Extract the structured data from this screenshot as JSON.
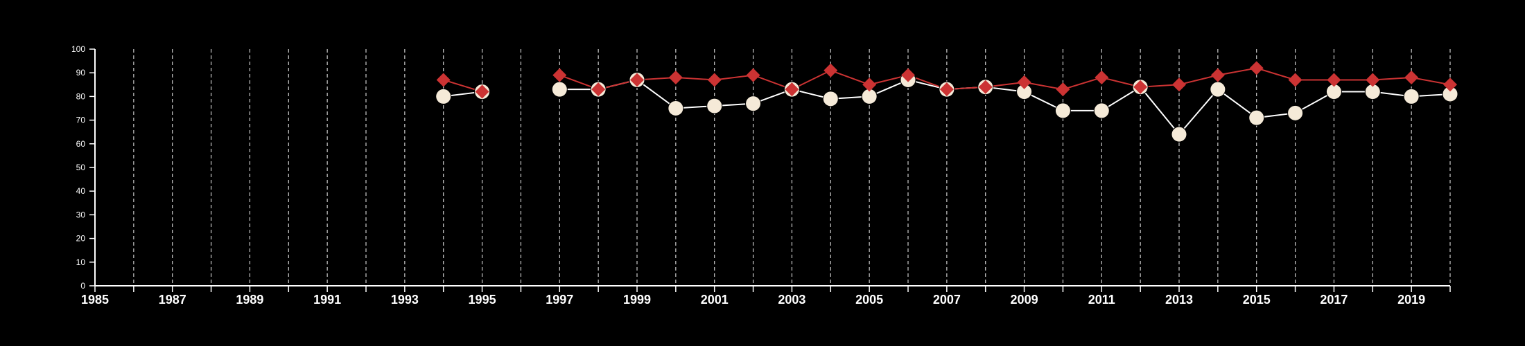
{
  "colors": {
    "background": "#000000",
    "axis": "#ffffff",
    "grid": "#cccccc",
    "series_a_line": "#ffffff",
    "series_a_marker": "#f5ead8",
    "series_b": "#cc3333"
  },
  "chart_data": {
    "type": "line",
    "title": "",
    "xlabel": "",
    "ylabel": "",
    "xlim": [
      1985,
      2020
    ],
    "ylim": [
      0,
      100
    ],
    "x_ticks": [
      "1985",
      "1987",
      "1989",
      "1991",
      "1993",
      "1995",
      "1997",
      "1999",
      "2001",
      "2003",
      "2005",
      "2007",
      "2009",
      "2011",
      "2013",
      "2015",
      "2017",
      "2019"
    ],
    "y_ticks": [
      "0",
      "10",
      "20",
      "30",
      "40",
      "50",
      "60",
      "70",
      "80",
      "90",
      "100"
    ],
    "grid": "vertical dashed lines at every year",
    "legend": "none",
    "series": [
      {
        "marker": "circle",
        "points": [
          [
            1994,
            80
          ],
          [
            1995,
            82
          ],
          [
            1997,
            83
          ],
          [
            1998,
            83
          ],
          [
            1999,
            87
          ],
          [
            2000,
            75
          ],
          [
            2001,
            76
          ],
          [
            2002,
            77
          ],
          [
            2003,
            83
          ],
          [
            2004,
            79
          ],
          [
            2005,
            80
          ],
          [
            2006,
            87
          ],
          [
            2007,
            83
          ],
          [
            2008,
            84
          ],
          [
            2009,
            82
          ],
          [
            2010,
            74
          ],
          [
            2011,
            74
          ],
          [
            2012,
            84
          ],
          [
            2013,
            64
          ],
          [
            2014,
            83
          ],
          [
            2015,
            71
          ],
          [
            2016,
            73
          ],
          [
            2017,
            82
          ],
          [
            2018,
            82
          ],
          [
            2019,
            80
          ],
          [
            2020,
            81
          ]
        ]
      },
      {
        "marker": "diamond",
        "points": [
          [
            1994,
            87
          ],
          [
            1995,
            82
          ],
          [
            1997,
            89
          ],
          [
            1998,
            83
          ],
          [
            1999,
            87
          ],
          [
            2000,
            88
          ],
          [
            2001,
            87
          ],
          [
            2002,
            89
          ],
          [
            2003,
            83
          ],
          [
            2004,
            91
          ],
          [
            2005,
            85
          ],
          [
            2006,
            89
          ],
          [
            2007,
            83
          ],
          [
            2008,
            84
          ],
          [
            2009,
            86
          ],
          [
            2010,
            83
          ],
          [
            2011,
            88
          ],
          [
            2012,
            84
          ],
          [
            2013,
            85
          ],
          [
            2014,
            89
          ],
          [
            2015,
            92
          ],
          [
            2016,
            87
          ],
          [
            2017,
            87
          ],
          [
            2018,
            87
          ],
          [
            2019,
            88
          ],
          [
            2020,
            85
          ]
        ]
      }
    ]
  }
}
